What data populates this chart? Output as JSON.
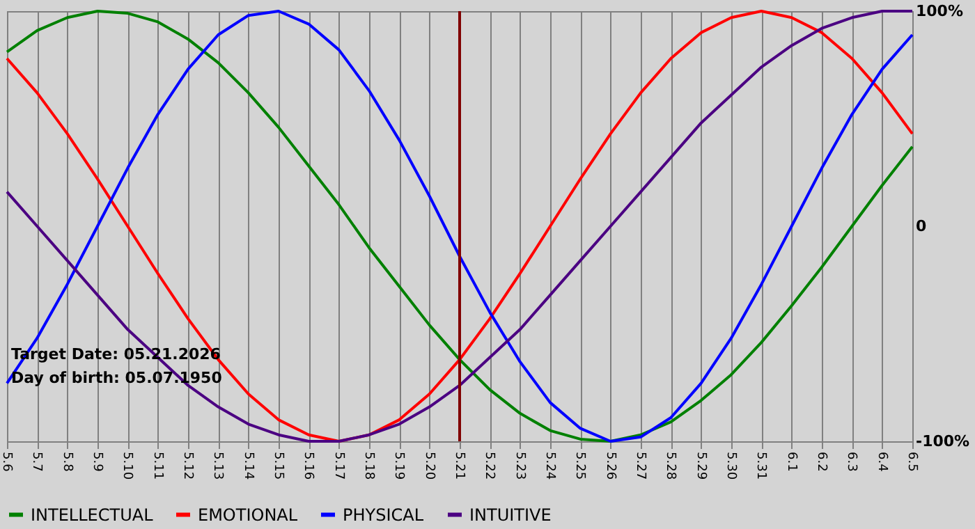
{
  "chart_data": {
    "type": "line",
    "categories": [
      "5.6",
      "5.7",
      "5.8",
      "5.9",
      "5.10",
      "5.11",
      "5.12",
      "5.13",
      "5.14",
      "5.15",
      "5.16",
      "5.17",
      "5.18",
      "5.19",
      "5.20",
      "5.21",
      "5.22",
      "5.23",
      "5.24",
      "5.25",
      "5.26",
      "5.27",
      "5.28",
      "5.29",
      "5.30",
      "5.31",
      "6.1",
      "6.2",
      "6.3",
      "6.4",
      "6.5"
    ],
    "series": [
      {
        "name": "INTELLECTUAL",
        "color": "#008000",
        "values": [
          81,
          91,
          97,
          100,
          99,
          95,
          87,
          76,
          62,
          46,
          28,
          10,
          -10,
          -28,
          -46,
          -62,
          -76,
          -87,
          -95,
          -99,
          -100,
          -97,
          -91,
          -81,
          -69,
          -54,
          -37,
          -19,
          0,
          19,
          37
        ]
      },
      {
        "name": "EMOTIONAL",
        "color": "#ff0000",
        "values": [
          78,
          62,
          43,
          22,
          0,
          -22,
          -43,
          -62,
          -78,
          -90,
          -97,
          -100,
          -97,
          -90,
          -78,
          -62,
          -43,
          -22,
          0,
          22,
          43,
          62,
          78,
          90,
          97,
          100,
          97,
          90,
          78,
          62,
          43
        ]
      },
      {
        "name": "PHYSICAL",
        "color": "#0000ff",
        "values": [
          -73,
          -52,
          -27,
          0,
          27,
          52,
          73,
          89,
          98,
          100,
          94,
          82,
          63,
          40,
          14,
          -14,
          -40,
          -63,
          -82,
          -94,
          -100,
          -98,
          -89,
          -73,
          -52,
          -27,
          0,
          27,
          52,
          73,
          89
        ]
      },
      {
        "name": "INTUITIVE",
        "color": "#4b0082",
        "values": [
          16,
          0,
          -16,
          -32,
          -48,
          -61,
          -74,
          -84,
          -92,
          -97,
          -100,
          -100,
          -97,
          -92,
          -84,
          -74,
          -61,
          -48,
          -32,
          -16,
          0,
          16,
          32,
          48,
          61,
          74,
          84,
          92,
          97,
          100,
          100
        ]
      }
    ],
    "ylim": [
      -100,
      100
    ],
    "yticks": [
      {
        "value": 100,
        "label": "100%"
      },
      0,
      {
        "value": -100,
        "label": "-100%"
      }
    ],
    "ref_lines": [
      {
        "axis": "x",
        "value": "5.21",
        "color": "#800000"
      }
    ],
    "annotations": [
      "Target Date: 05.21.2026",
      "Day of birth: 05.07.1950"
    ],
    "grid": "x",
    "legend": "bottom",
    "marker": "none",
    "line_style": "solid"
  }
}
